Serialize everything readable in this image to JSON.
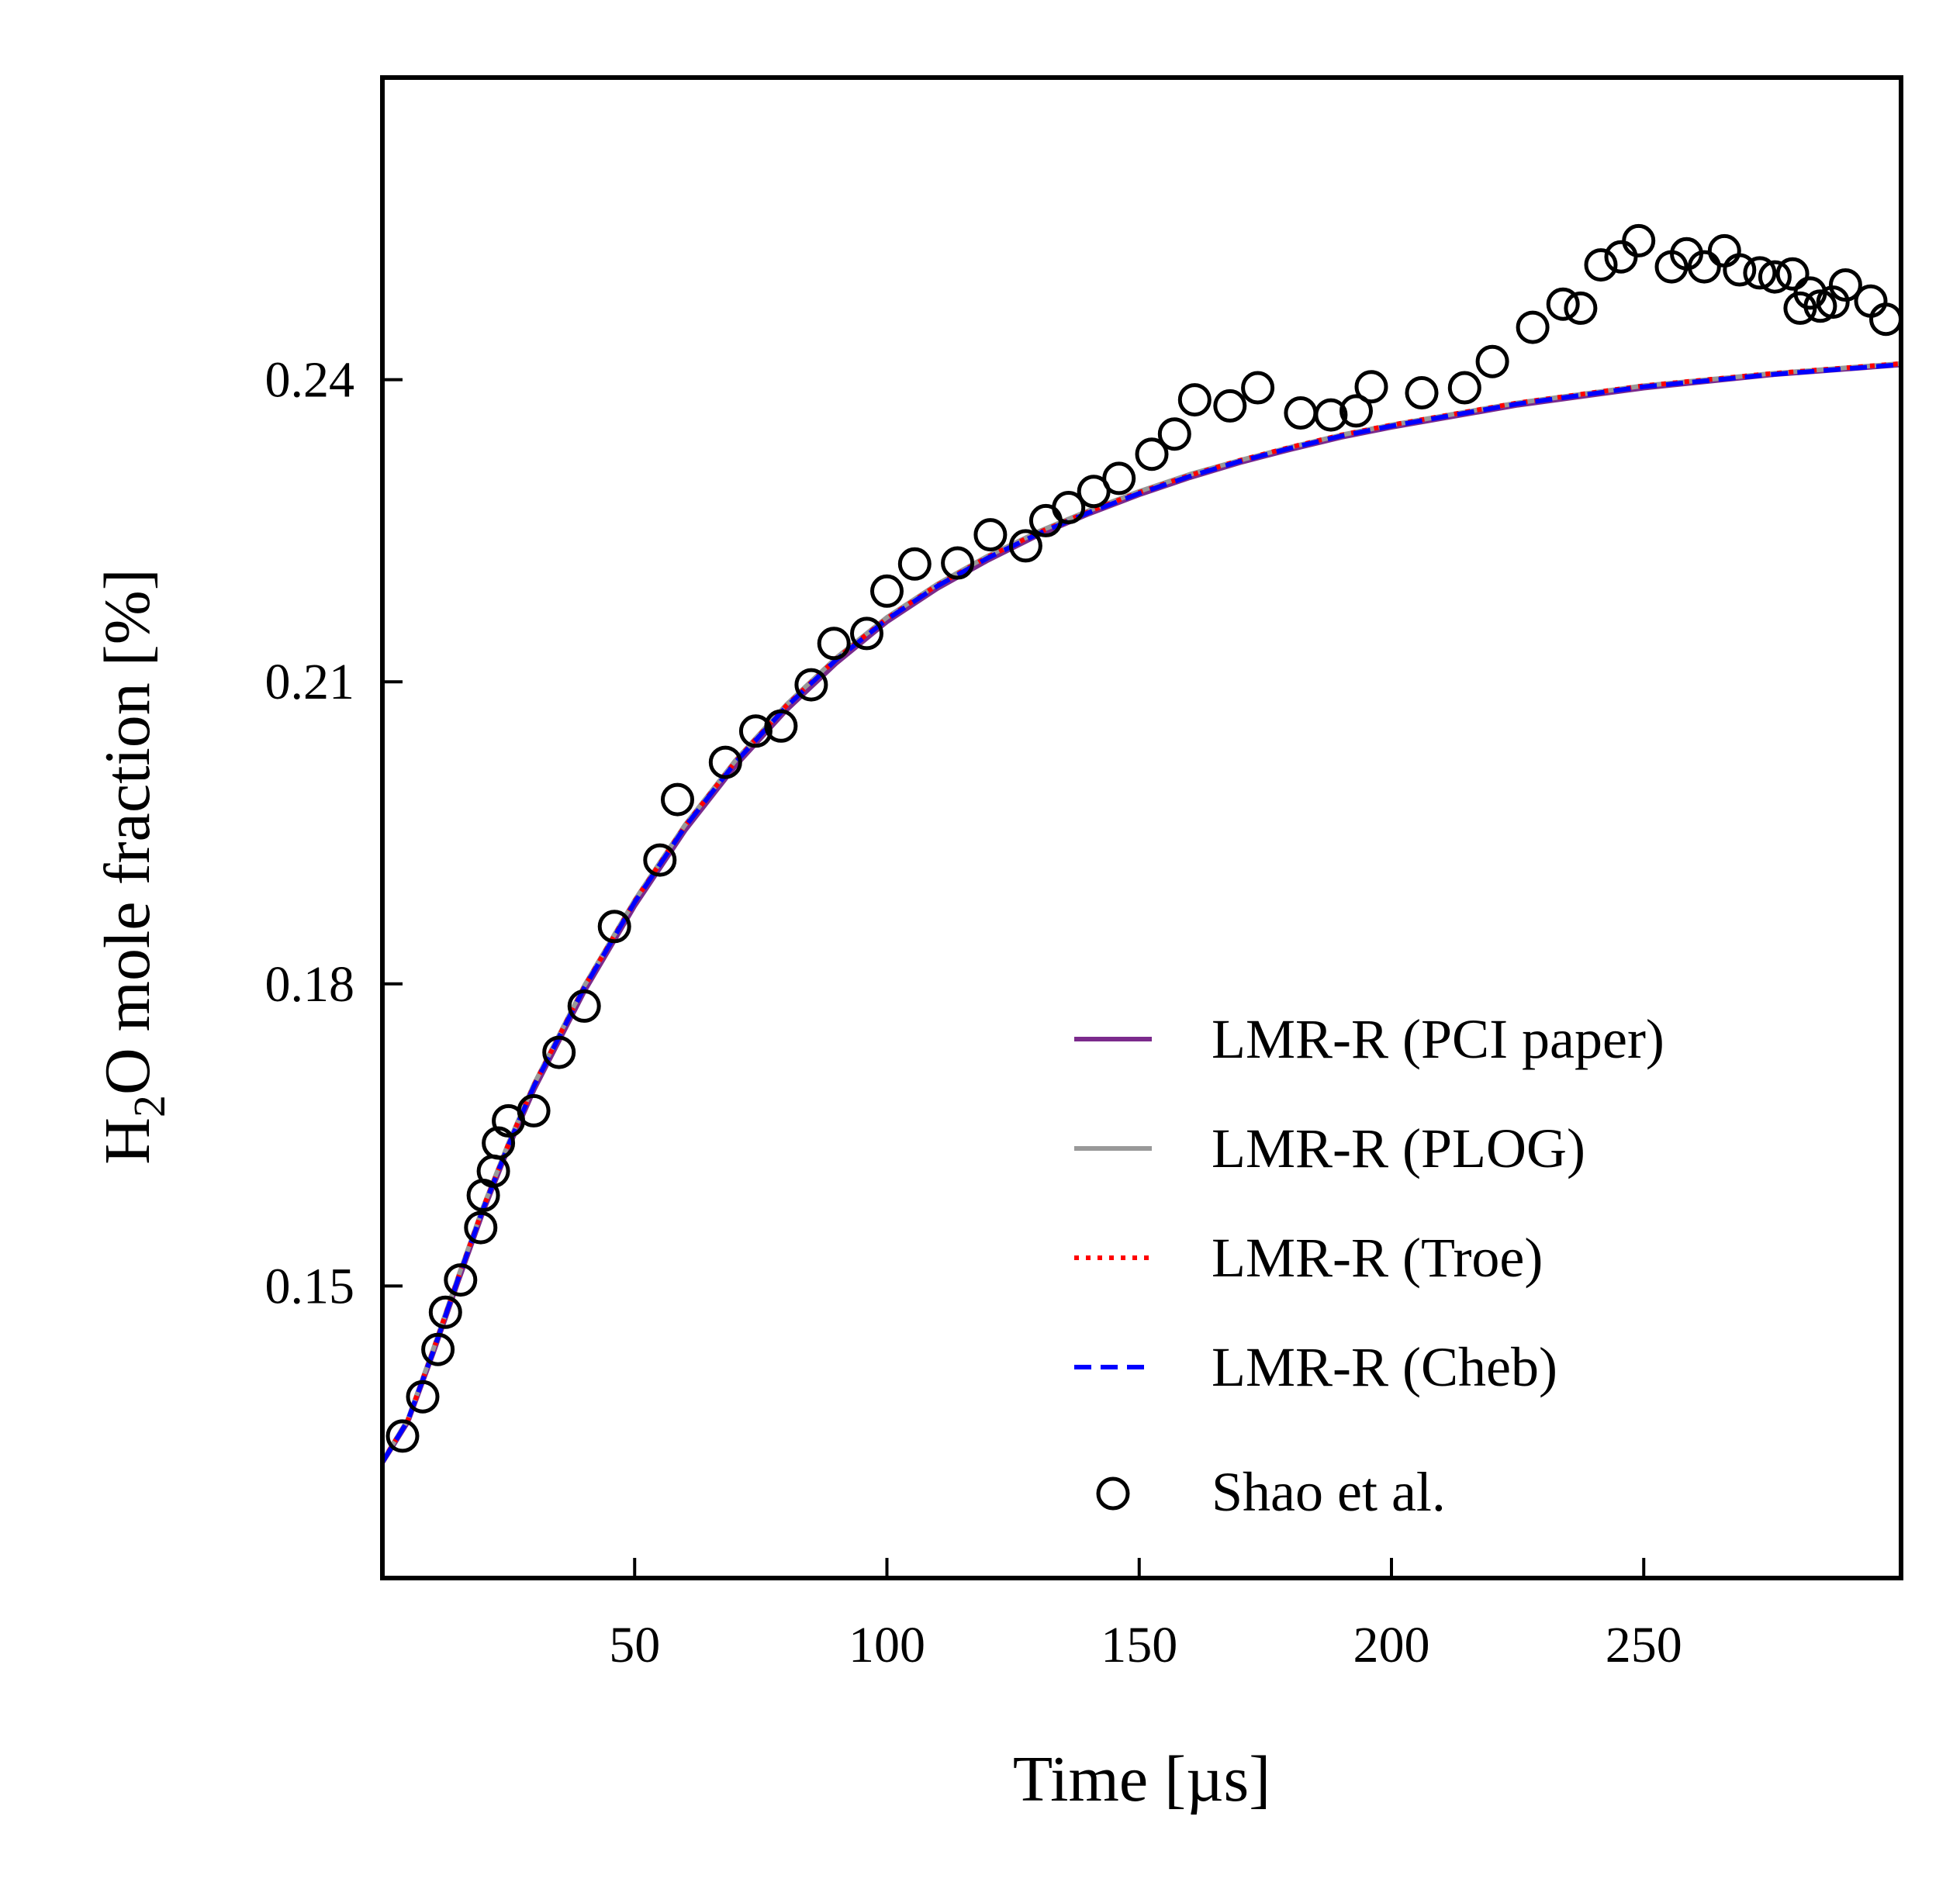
{
  "chart_data": {
    "type": "line",
    "title": "",
    "xlabel": "Time [µs]",
    "ylabel_main": "H",
    "ylabel_sub": "2",
    "ylabel_rest": "O mole fraction [%]",
    "xlim": [
      0,
      301
    ],
    "ylim": [
      0.121,
      0.27
    ],
    "xticks": [
      50,
      100,
      150,
      200,
      250
    ],
    "xtick_labels": [
      "50",
      "100",
      "150",
      "200",
      "250"
    ],
    "yticks": [
      0.15,
      0.18,
      0.21,
      0.24
    ],
    "ytick_labels": [
      "0.15",
      "0.18",
      "0.21",
      "0.24"
    ],
    "grid": false,
    "legend_position": "lower-right",
    "series": [
      {
        "name": "LMR-R (PCI paper)",
        "style": "solid",
        "color": "#7b2a8c",
        "x": [
          0,
          5,
          10,
          15,
          20,
          25,
          30,
          40,
          50,
          60,
          70,
          80,
          90,
          100,
          110,
          120,
          130,
          140,
          150,
          160,
          170,
          180,
          190,
          200,
          225,
          250,
          275,
          301
        ],
        "y": [
          0.1325,
          0.1365,
          0.1433,
          0.1505,
          0.1575,
          0.1638,
          0.1695,
          0.1793,
          0.1878,
          0.1953,
          0.2017,
          0.2072,
          0.2119,
          0.216,
          0.2193,
          0.2221,
          0.2246,
          0.2267,
          0.2286,
          0.2303,
          0.2318,
          0.2331,
          0.2343,
          0.2353,
          0.2375,
          0.2392,
          0.2405,
          0.2415
        ]
      },
      {
        "name": "LMR-R (PLOG)",
        "style": "solid",
        "color": "#999999",
        "x": [
          0,
          5,
          10,
          15,
          20,
          25,
          30,
          40,
          50,
          60,
          70,
          80,
          90,
          100,
          110,
          120,
          130,
          140,
          150,
          160,
          170,
          180,
          190,
          200,
          225,
          250,
          275,
          301
        ],
        "y": [
          0.1326,
          0.1367,
          0.1436,
          0.1509,
          0.1579,
          0.1642,
          0.17,
          0.1798,
          0.1883,
          0.1958,
          0.2022,
          0.2077,
          0.2124,
          0.2164,
          0.2197,
          0.2225,
          0.2249,
          0.227,
          0.2289,
          0.2306,
          0.232,
          0.2333,
          0.2345,
          0.2355,
          0.2377,
          0.2394,
          0.2406,
          0.2416
        ]
      },
      {
        "name": "LMR-R (Troe)",
        "style": "dotted",
        "color": "#ff0000",
        "x": [
          0,
          5,
          10,
          15,
          20,
          25,
          30,
          40,
          50,
          60,
          70,
          80,
          90,
          100,
          110,
          120,
          130,
          140,
          150,
          160,
          170,
          180,
          190,
          200,
          225,
          250,
          275,
          301
        ],
        "y": [
          0.1326,
          0.1366,
          0.1435,
          0.1508,
          0.1578,
          0.1641,
          0.1699,
          0.1797,
          0.1882,
          0.1957,
          0.2021,
          0.2076,
          0.2123,
          0.2163,
          0.2196,
          0.2224,
          0.2248,
          0.2269,
          0.2288,
          0.2305,
          0.232,
          0.2333,
          0.2345,
          0.2355,
          0.2377,
          0.2394,
          0.2406,
          0.2416
        ]
      },
      {
        "name": "LMR-R (Cheb)",
        "style": "dashed",
        "color": "#0000ff",
        "x": [
          0,
          5,
          10,
          15,
          20,
          25,
          30,
          40,
          50,
          60,
          70,
          80,
          90,
          100,
          110,
          120,
          130,
          140,
          150,
          160,
          170,
          180,
          190,
          200,
          225,
          250,
          275,
          301
        ],
        "y": [
          0.1325,
          0.1366,
          0.1434,
          0.1507,
          0.1577,
          0.164,
          0.1698,
          0.1796,
          0.1881,
          0.1956,
          0.202,
          0.2075,
          0.2122,
          0.2162,
          0.2195,
          0.2223,
          0.2247,
          0.2268,
          0.2287,
          0.2304,
          0.2319,
          0.2332,
          0.2344,
          0.2354,
          0.2376,
          0.2393,
          0.2405,
          0.2415
        ]
      },
      {
        "name": "Shao et al.",
        "style": "markers",
        "color": "#000000",
        "x": [
          4,
          8,
          11,
          12.5,
          15.5,
          19.5,
          20,
          22,
          23,
          25,
          30,
          35,
          40,
          46,
          55,
          58.5,
          68,
          74,
          79,
          85,
          89.5,
          96,
          100,
          105.5,
          114,
          120.5,
          127.5,
          131.5,
          136,
          141,
          146,
          152.5,
          157,
          161,
          168,
          173.5,
          182,
          188,
          193,
          196,
          206,
          214.5,
          220,
          228,
          234,
          237.5,
          241.5,
          245.5,
          249,
          255.5,
          258.5,
          262,
          266,
          269,
          273,
          276,
          279.5,
          281,
          283,
          285,
          287.5,
          290,
          295,
          298
        ],
        "y": [
          0.1351,
          0.139,
          0.1437,
          0.1474,
          0.1506,
          0.1558,
          0.159,
          0.1614,
          0.1642,
          0.1664,
          0.1674,
          0.1732,
          0.1778,
          0.1857,
          0.1923,
          0.1983,
          0.202,
          0.2051,
          0.2056,
          0.2097,
          0.2138,
          0.2148,
          0.219,
          0.2217,
          0.2218,
          0.2246,
          0.2235,
          0.226,
          0.2273,
          0.2289,
          0.2302,
          0.2326,
          0.2346,
          0.238,
          0.2374,
          0.2392,
          0.2367,
          0.2365,
          0.2369,
          0.2393,
          0.2387,
          0.2392,
          0.2418,
          0.2452,
          0.2475,
          0.2471,
          0.2514,
          0.2522,
          0.2538,
          0.2512,
          0.2525,
          0.2512,
          0.2528,
          0.2509,
          0.2506,
          0.2502,
          0.2505,
          0.2471,
          0.2486,
          0.2473,
          0.2477,
          0.2494,
          0.2478,
          0.246
        ]
      }
    ]
  }
}
